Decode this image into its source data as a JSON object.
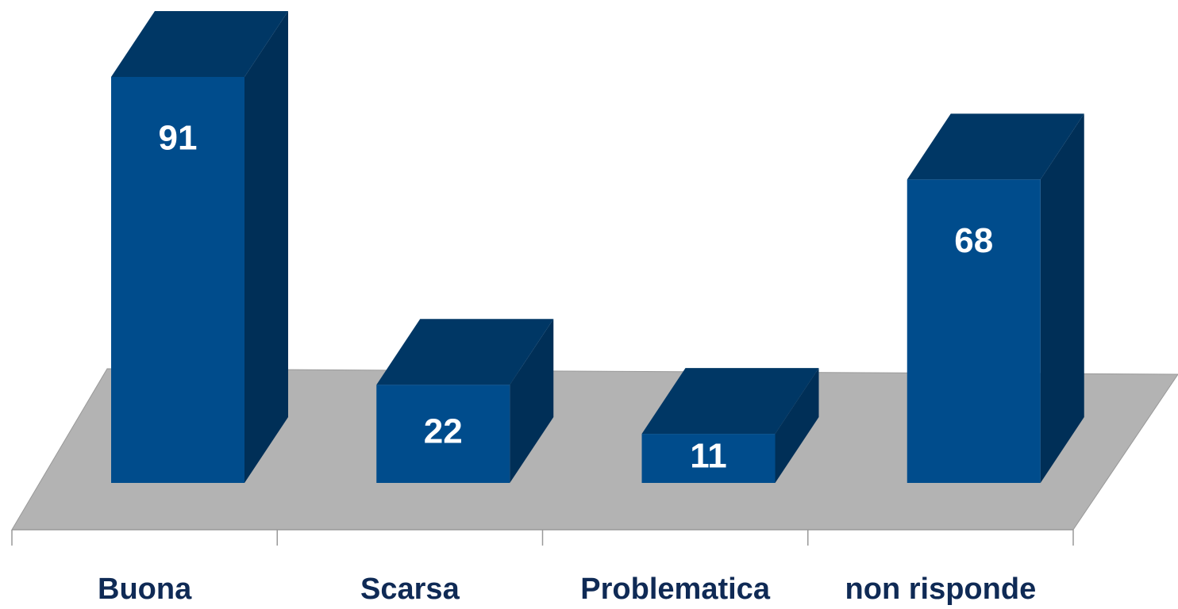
{
  "chart_data": {
    "type": "bar3d",
    "categories": [
      "Buona",
      "Scarsa",
      "Problematica",
      "non risponde"
    ],
    "values": [
      91,
      22,
      11,
      68
    ],
    "color": "#004c8c"
  }
}
